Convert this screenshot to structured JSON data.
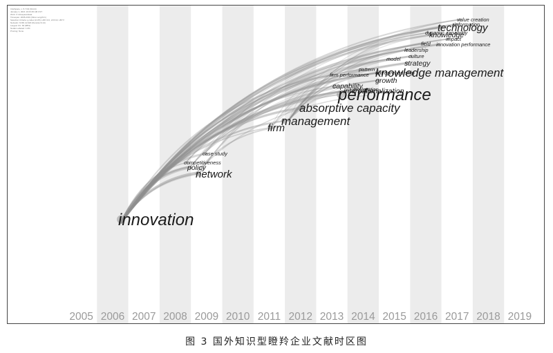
{
  "caption": "图 3 国外知识型瞪羚企业文献时区图",
  "metadata_lines": [
    "CiteSpace, v. 5.7.R2 (64-bit)",
    "January 1, 2021 10:23:45 AM CST",
    "WoS: C:\\citespace\\data",
    "Timespan: 2005-2019 (Slice Length=1)",
    "Selection Criteria: g-index (k=25), LRF=3.0, L/N=10, LBY=5, e=1.0",
    "Network: N=68, E=320 (Density=0.14)",
    "Largest CC: 60 (88%)",
    "Nodes Labeled: 1.0%",
    "Pruning: None"
  ],
  "years": [
    "2005",
    "2006",
    "2007",
    "2008",
    "2009",
    "2010",
    "2011",
    "2012",
    "2013",
    "2014",
    "2015",
    "2016",
    "2017",
    "2018",
    "2019"
  ],
  "keywords": [
    {
      "text": "innovation",
      "size": "xl"
    },
    {
      "text": "network",
      "size": "m"
    },
    {
      "text": "policy",
      "size": "s"
    },
    {
      "text": "competitiveness",
      "size": "xs"
    },
    {
      "text": "case study",
      "size": "xs"
    },
    {
      "text": "firm",
      "size": "m"
    },
    {
      "text": "management",
      "size": "l"
    },
    {
      "text": "absorptive capacity",
      "size": "l"
    },
    {
      "text": "performance",
      "size": "xl"
    },
    {
      "text": "internationalization",
      "size": "s"
    },
    {
      "text": "capability",
      "size": "s"
    },
    {
      "text": "growth",
      "size": "s"
    },
    {
      "text": "exploration",
      "size": "xs"
    },
    {
      "text": "firm performance",
      "size": "xs"
    },
    {
      "text": "entrepreneurship",
      "size": "xs"
    },
    {
      "text": "pattern",
      "size": "xs"
    },
    {
      "text": "knowledge management",
      "size": "l"
    },
    {
      "text": "strategy",
      "size": "s"
    },
    {
      "text": "model",
      "size": "xs"
    },
    {
      "text": "culture",
      "size": "xs"
    },
    {
      "text": "leadership",
      "size": "xs"
    },
    {
      "text": "field",
      "size": "xs"
    },
    {
      "text": "innovation performance",
      "size": "xs"
    },
    {
      "text": "impact",
      "size": "xs"
    },
    {
      "text": "knowledge",
      "size": "s"
    },
    {
      "text": "dynamic capability",
      "size": "xs"
    },
    {
      "text": "technology",
      "size": "m"
    },
    {
      "text": "information",
      "size": "xs"
    },
    {
      "text": "value creation",
      "size": "xs"
    }
  ],
  "colors": {
    "stripe": "#ececec",
    "link": "#8e8e8e",
    "year_label": "#9a9a9a",
    "keyword": "#1a1a1a"
  }
}
